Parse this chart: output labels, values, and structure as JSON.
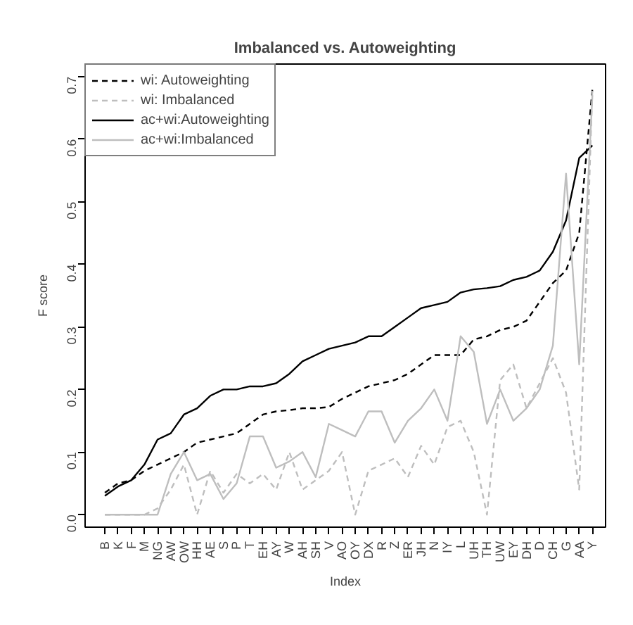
{
  "chart_data": {
    "type": "line",
    "title": "Imbalanced vs. Autoweighting",
    "xlabel": "Index",
    "ylabel": "F score",
    "categories": [
      "B",
      "K",
      "F",
      "M",
      "NG",
      "AW",
      "OW",
      "HH",
      "AE",
      "S",
      "P",
      "T",
      "EH",
      "AY",
      "W",
      "AH",
      "SH",
      "V",
      "AO",
      "OY",
      "DX",
      "R",
      "Z",
      "ER",
      "JH",
      "N",
      "IY",
      "L",
      "UH",
      "TH",
      "UW",
      "EY",
      "DH",
      "D",
      "CH",
      "G",
      "AA",
      "Y"
    ],
    "ylim": [
      -0.02,
      0.72
    ],
    "yticks": [
      {
        "value": 0,
        "label": "0.0"
      },
      0.1,
      0.2,
      0.3,
      0.4,
      0.5,
      0.6,
      0.7
    ],
    "grid": false,
    "legend": "top left",
    "series": [
      {
        "name": "wi: Autoweighting",
        "color": "#000000",
        "line_style": "dashed",
        "values": [
          0.035,
          0.05,
          0.055,
          0.07,
          0.08,
          0.09,
          0.1,
          0.115,
          0.12,
          0.125,
          0.13,
          0.145,
          0.16,
          0.165,
          0.167,
          0.17,
          0.17,
          0.172,
          0.185,
          0.195,
          0.205,
          0.21,
          0.215,
          0.225,
          0.24,
          0.255,
          0.255,
          0.255,
          0.28,
          0.285,
          0.295,
          0.3,
          0.31,
          0.34,
          0.37,
          0.39,
          0.45,
          0.68
        ]
      },
      {
        "name": "wi: Imbalanced",
        "color": "#bebebe",
        "line_style": "dashed",
        "values": [
          0,
          0,
          0,
          0,
          0.01,
          0.04,
          0.08,
          0,
          0.07,
          0.035,
          0.065,
          0.05,
          0.065,
          0.04,
          0.1,
          0.04,
          0.055,
          0.07,
          0.1,
          0,
          0.07,
          0.08,
          0.09,
          0.06,
          0.11,
          0.08,
          0.14,
          0.15,
          0.1,
          0,
          0.215,
          0.24,
          0.17,
          0.21,
          0.25,
          0.195,
          0.04,
          0.68
        ]
      },
      {
        "name": "ac+wi:Autoweighting",
        "color": "#000000",
        "line_style": "solid",
        "values": [
          0.03,
          0.045,
          0.055,
          0.08,
          0.12,
          0.13,
          0.16,
          0.17,
          0.19,
          0.2,
          0.2,
          0.205,
          0.205,
          0.21,
          0.225,
          0.245,
          0.255,
          0.265,
          0.27,
          0.275,
          0.285,
          0.285,
          0.3,
          0.315,
          0.33,
          0.335,
          0.34,
          0.355,
          0.36,
          0.362,
          0.365,
          0.375,
          0.38,
          0.39,
          0.42,
          0.47,
          0.57,
          0.59
        ]
      },
      {
        "name": "ac+wi:Imbalanced",
        "color": "#bebebe",
        "line_style": "solid",
        "values": [
          0,
          0,
          0,
          0,
          0,
          0.065,
          0.1,
          0.055,
          0.065,
          0.025,
          0.05,
          0.125,
          0.125,
          0.075,
          0.085,
          0.1,
          0.06,
          0.145,
          0.135,
          0.125,
          0.165,
          0.165,
          0.115,
          0.15,
          0.17,
          0.2,
          0.15,
          0.285,
          0.26,
          0.145,
          0.2,
          0.15,
          0.17,
          0.2,
          0.27,
          0.545,
          0.24,
          0.67
        ]
      }
    ]
  }
}
